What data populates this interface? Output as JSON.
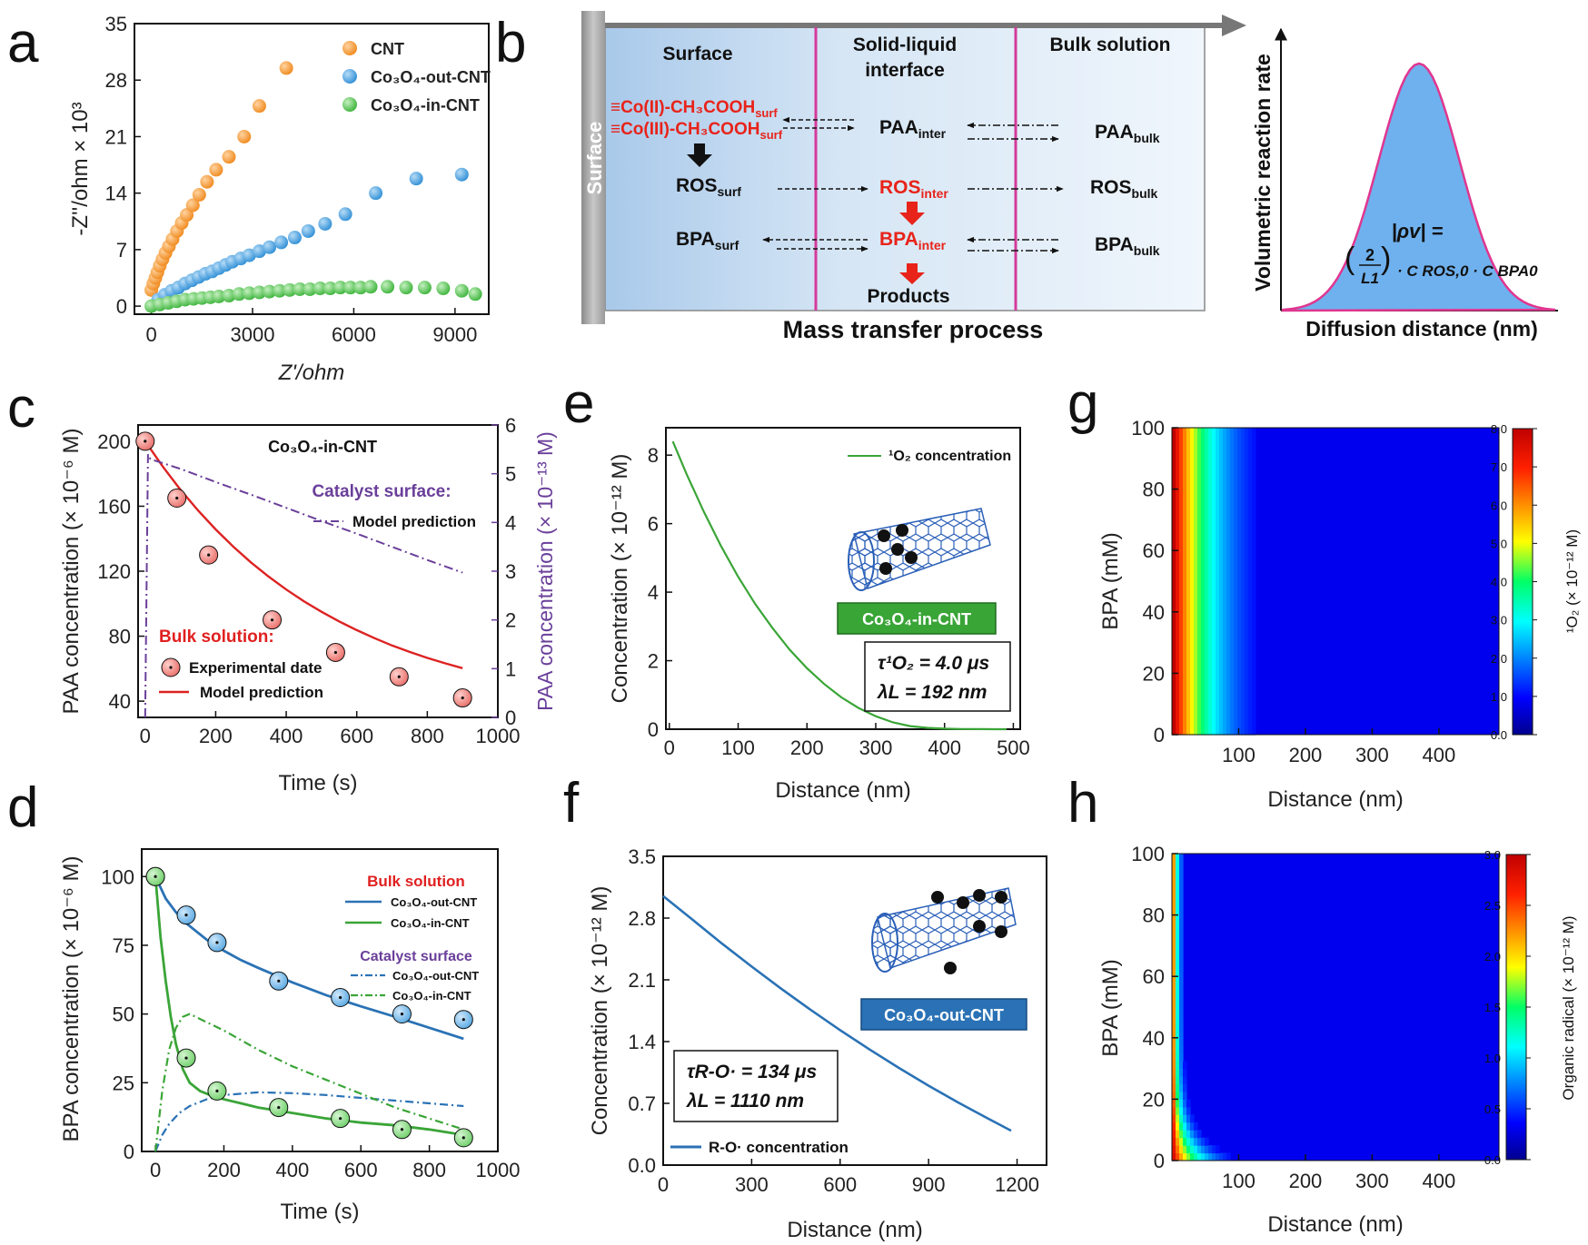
{
  "panel_letters": [
    "a",
    "b",
    "c",
    "d",
    "e",
    "f",
    "g",
    "h"
  ],
  "colors": {
    "cnt": "#f5a34a",
    "out": "#4aa3df",
    "in": "#5cc85a",
    "model_red": "#dd2222",
    "purple": "#6a3f9a",
    "line_out": "#2a72b5",
    "line_in": "#3aa537",
    "diagram_blue": "#c9ddf0",
    "pink": "#d43a9a",
    "hill_fill": "#6fb1ee"
  },
  "diagram_b": {
    "zones": [
      "Surface",
      "Solid-liquid",
      "interface",
      "Bulk solution"
    ],
    "wall_label": "Surface",
    "surface_species": [
      "≡Co(II)-CH₃COOH",
      "surf",
      "≡Co(III)-CH₃COOH",
      "surf"
    ],
    "rows": [
      {
        "a": "PAA",
        "a_sub": "inter",
        "b": "PAA",
        "b_sub": "bulk"
      },
      {
        "s": "ROS",
        "s_sub": "surf",
        "a": "ROS",
        "a_sub": "inter",
        "b": "ROS",
        "b_sub": "bulk"
      },
      {
        "s": "BPA",
        "s_sub": "surf",
        "a": "BPA",
        "a_sub": "inter",
        "b": "BPA",
        "b_sub": "bulk"
      }
    ],
    "products": "Products",
    "xlabel": "Mass transfer process",
    "curve_ylabel": "Volumetric reaction rate",
    "curve_xlabel": "Diffusion distance (nm)",
    "eq_lhs": "|ρv| =",
    "eq_rhs": "· C ROS,0 · C BPA0",
    "eq_num": "2",
    "eq_den": "L1"
  },
  "chart_data": [
    {
      "panel": "a",
      "type": "scatter",
      "xlabel": "Z'/ohm",
      "ylabel": "-Z''/ohm × 10³",
      "xlim": [
        -500,
        10000
      ],
      "ylim": [
        -1,
        35
      ],
      "xticks": [
        0,
        3000,
        6000,
        9000
      ],
      "yticks": [
        0,
        7,
        14,
        21,
        28,
        35
      ],
      "series": [
        {
          "name": "CNT",
          "x": [
            0,
            60,
            120,
            180,
            250,
            330,
            420,
            520,
            630,
            760,
            900,
            1050,
            1230,
            1420,
            1650,
            1920,
            2300,
            2750,
            3200,
            4000
          ],
          "y": [
            2,
            2.8,
            3.5,
            4.2,
            5,
            5.8,
            6.6,
            7.4,
            8.3,
            9.3,
            10.3,
            11.3,
            12.5,
            13.8,
            15.4,
            16.9,
            18.5,
            21,
            24.8,
            29.5
          ]
        },
        {
          "name": "Co₃O₄-out-CNT",
          "x": [
            200,
            400,
            600,
            800,
            1000,
            1200,
            1400,
            1600,
            1800,
            2000,
            2200,
            2400,
            2650,
            2900,
            3200,
            3500,
            3850,
            4250,
            4650,
            5150,
            5750,
            6650,
            7850,
            9200
          ],
          "y": [
            0.8,
            1.4,
            1.9,
            2.3,
            2.8,
            3.2,
            3.6,
            4,
            4.3,
            4.7,
            5.1,
            5.5,
            5.9,
            6.3,
            6.8,
            7.3,
            7.9,
            8.5,
            9.3,
            10.2,
            11.4,
            14,
            15.8,
            16.3
          ]
        },
        {
          "name": "Co₃O₄-in-CNT",
          "x": [
            0,
            250,
            500,
            750,
            1000,
            1250,
            1500,
            1750,
            2000,
            2300,
            2600,
            2900,
            3200,
            3500,
            3800,
            4100,
            4400,
            4700,
            5000,
            5300,
            5600,
            5900,
            6200,
            6500,
            7000,
            7550,
            8100,
            8650,
            9200,
            9600
          ],
          "y": [
            0,
            0.2,
            0.4,
            0.6,
            0.8,
            0.9,
            1.0,
            1.1,
            1.2,
            1.3,
            1.5,
            1.6,
            1.7,
            1.8,
            1.9,
            2.0,
            2.1,
            2.1,
            2.2,
            2.2,
            2.3,
            2.3,
            2.3,
            2.4,
            2.4,
            2.3,
            2.3,
            2.2,
            1.9,
            1.5
          ]
        }
      ]
    },
    {
      "panel": "c",
      "type": "line",
      "title": "Co₃O₄-in-CNT",
      "xlabel": "Time (s)",
      "ylabel": "PAA concentration (× 10⁻⁶ M)",
      "y2label": "PAA concentration (× 10⁻¹³ M)",
      "xlim": [
        -20,
        1000
      ],
      "ylim": [
        30,
        210
      ],
      "y2lim": [
        0,
        6
      ],
      "xticks": [
        0,
        200,
        400,
        600,
        800,
        1000
      ],
      "yticks": [
        40,
        80,
        120,
        160,
        200
      ],
      "y2ticks": [
        0,
        1,
        2,
        3,
        4,
        5,
        6
      ],
      "annot_surface": "Catalyst surface:",
      "annot_bulk": "Bulk solution:",
      "legend": [
        "Model prediction",
        "Experimental date",
        "Model prediction"
      ],
      "experimental": {
        "x": [
          0,
          90,
          180,
          360,
          540,
          720,
          900
        ],
        "y": [
          200,
          165,
          130,
          90,
          70,
          55,
          42
        ]
      },
      "model_bulk": {
        "x": [
          0,
          50,
          100,
          150,
          200,
          250,
          300,
          350,
          400,
          450,
          500,
          550,
          600,
          650,
          700,
          750,
          800,
          850,
          900
        ],
        "y": [
          200,
          184.4,
          170.2,
          157.4,
          145.7,
          135.1,
          125.4,
          116.7,
          108.7,
          101.5,
          95,
          89.1,
          83.7,
          78.8,
          74.3,
          70.3,
          66.6,
          63.3,
          60.3
        ]
      },
      "model_surface": {
        "x": [
          0,
          8,
          15,
          100,
          200,
          300,
          400,
          500,
          600,
          700,
          800,
          900
        ],
        "y2": [
          0,
          5.4,
          5.3,
          5.1,
          4.83,
          4.57,
          4.3,
          4.03,
          3.77,
          3.5,
          3.23,
          2.97
        ]
      }
    },
    {
      "panel": "d",
      "type": "line",
      "xlabel": "Time (s)",
      "ylabel": "BPA concentration (× 10⁻⁶ M)",
      "xlim": [
        -40,
        1000
      ],
      "ylim": [
        0,
        110
      ],
      "xticks": [
        0,
        200,
        400,
        600,
        800,
        1000
      ],
      "yticks": [
        0,
        25,
        50,
        75,
        100
      ],
      "annot_bulk": "Bulk solution",
      "annot_surface": "Catalyst surface",
      "legend": [
        "Co₃O₄-out-CNT",
        "Co₃O₄-in-CNT",
        "Co₃O₄-out-CNT",
        "Co₃O₄-in-CNT"
      ],
      "exp_out": {
        "x": [
          0,
          90,
          180,
          360,
          540,
          720,
          900
        ],
        "y": [
          100,
          86,
          76,
          62,
          56,
          50,
          48
        ]
      },
      "exp_in": {
        "x": [
          0,
          90,
          180,
          360,
          540,
          720,
          900
        ],
        "y": [
          100,
          34,
          22,
          16,
          12,
          8,
          5
        ]
      },
      "model_out": {
        "x": [
          0,
          30,
          60,
          90,
          120,
          150,
          200,
          250,
          300,
          400,
          500,
          600,
          700,
          800,
          900
        ],
        "y": [
          100,
          92,
          87,
          83,
          80,
          77,
          73,
          69.6,
          66.8,
          61.5,
          56.8,
          52.8,
          49,
          45,
          41
        ]
      },
      "model_in": {
        "x": [
          0,
          15,
          30,
          45,
          60,
          80,
          100,
          130,
          160,
          200,
          250,
          300,
          400,
          500,
          600,
          700,
          800,
          900
        ],
        "y": [
          100,
          78,
          62,
          49,
          39,
          30,
          25,
          22,
          20.5,
          19,
          17.5,
          16,
          14,
          12,
          10.5,
          9.5,
          8,
          6
        ]
      },
      "surf_out": {
        "x": [
          0,
          20,
          40,
          70,
          100,
          150,
          200,
          300,
          400,
          500,
          600,
          700,
          800,
          900
        ],
        "y": [
          0,
          6,
          10,
          14,
          16.5,
          19,
          20.5,
          21.5,
          21.2,
          20.5,
          19.5,
          18.5,
          17.5,
          16.5
        ]
      },
      "surf_in": {
        "x": [
          0,
          20,
          40,
          60,
          80,
          100,
          150,
          200,
          300,
          400,
          500,
          600,
          700,
          800,
          900
        ],
        "y": [
          0,
          22,
          37,
          45,
          49,
          50,
          47,
          44,
          37,
          31,
          26,
          21,
          16,
          12,
          8
        ]
      }
    },
    {
      "panel": "e",
      "type": "line",
      "xlabel": "Distance (nm)",
      "ylabel": "Concentration (× 10⁻¹² M)",
      "xlim": [
        -5,
        510
      ],
      "ylim": [
        0,
        8.8
      ],
      "xticks": [
        0,
        100,
        200,
        300,
        400,
        500
      ],
      "yticks": [
        0,
        2,
        4,
        6,
        8
      ],
      "legend": [
        "¹O₂ concentration"
      ],
      "badge": "Co₃O₄-in-CNT",
      "note_tau": "τ¹O₂ = 4.0 μs",
      "note_lambda": "λL = 192 nm",
      "series": [
        {
          "name": "¹O₂ concentration",
          "x": [
            5,
            25,
            50,
            75,
            100,
            125,
            150,
            175,
            200,
            225,
            250,
            275,
            300,
            325,
            350,
            375,
            400,
            425,
            450,
            475,
            490
          ],
          "y": [
            8.4,
            7.45,
            6.35,
            5.35,
            4.45,
            3.65,
            2.95,
            2.32,
            1.78,
            1.32,
            0.93,
            0.62,
            0.38,
            0.2,
            0.09,
            0.04,
            0.015,
            0.005,
            0.002,
            0.001,
            0
          ]
        }
      ]
    },
    {
      "panel": "f",
      "type": "line",
      "xlabel": "Distance (nm)",
      "ylabel": "Concentration (× 10⁻¹² M)",
      "xlim": [
        0,
        1300
      ],
      "ylim": [
        0,
        3.5
      ],
      "xticks": [
        0,
        300,
        600,
        900,
        1200
      ],
      "yticks": [
        0.0,
        0.7,
        1.4,
        2.1,
        2.8,
        3.5
      ],
      "legend": [
        "R-O· concentration"
      ],
      "badge": "Co₃O₄-out-CNT",
      "note_tau": "τR-O· = 134 μs",
      "note_lambda": "λL = 1110 nm",
      "series": [
        {
          "name": "R-O· concentration",
          "x": [
            0,
            100,
            200,
            300,
            400,
            500,
            600,
            700,
            800,
            900,
            1000,
            1100,
            1180
          ],
          "y": [
            3.05,
            2.78,
            2.51,
            2.25,
            2.0,
            1.76,
            1.53,
            1.31,
            1.1,
            0.9,
            0.71,
            0.53,
            0.39
          ]
        }
      ]
    },
    {
      "panel": "g",
      "type": "heatmap",
      "xlabel": "Distance (nm)",
      "ylabel": "BPA (mM)",
      "cbar_label": "¹O₂ (× 10⁻¹² M)",
      "xlim": [
        0,
        490
      ],
      "ylim": [
        0,
        100
      ],
      "xticks": [
        100,
        200,
        300,
        400
      ],
      "yticks": [
        0,
        20,
        40,
        60,
        80,
        100
      ],
      "cbar_ticks": [
        "0.0",
        "1.0",
        "2.0",
        "3.0",
        "4.0",
        "5.0",
        "6.0",
        "7.0",
        "8.0"
      ],
      "cbar_range": [
        0,
        8
      ],
      "peak": 8.4,
      "decay_nm": 60
    },
    {
      "panel": "h",
      "type": "heatmap",
      "xlabel": "Distance (nm)",
      "ylabel": "BPA (mM)",
      "cbar_label": "Organic radical (× 10⁻¹² M)",
      "xlim": [
        0,
        490
      ],
      "ylim": [
        0,
        100
      ],
      "xticks": [
        100,
        200,
        300,
        400
      ],
      "yticks": [
        0,
        20,
        40,
        60,
        80,
        100
      ],
      "cbar_ticks": [
        "0.0",
        "0.5",
        "1.0",
        "1.5",
        "2.0",
        "2.5",
        "3.0"
      ],
      "cbar_range": [
        0,
        3
      ],
      "peak": 3.0,
      "decay_nm": 25
    }
  ]
}
